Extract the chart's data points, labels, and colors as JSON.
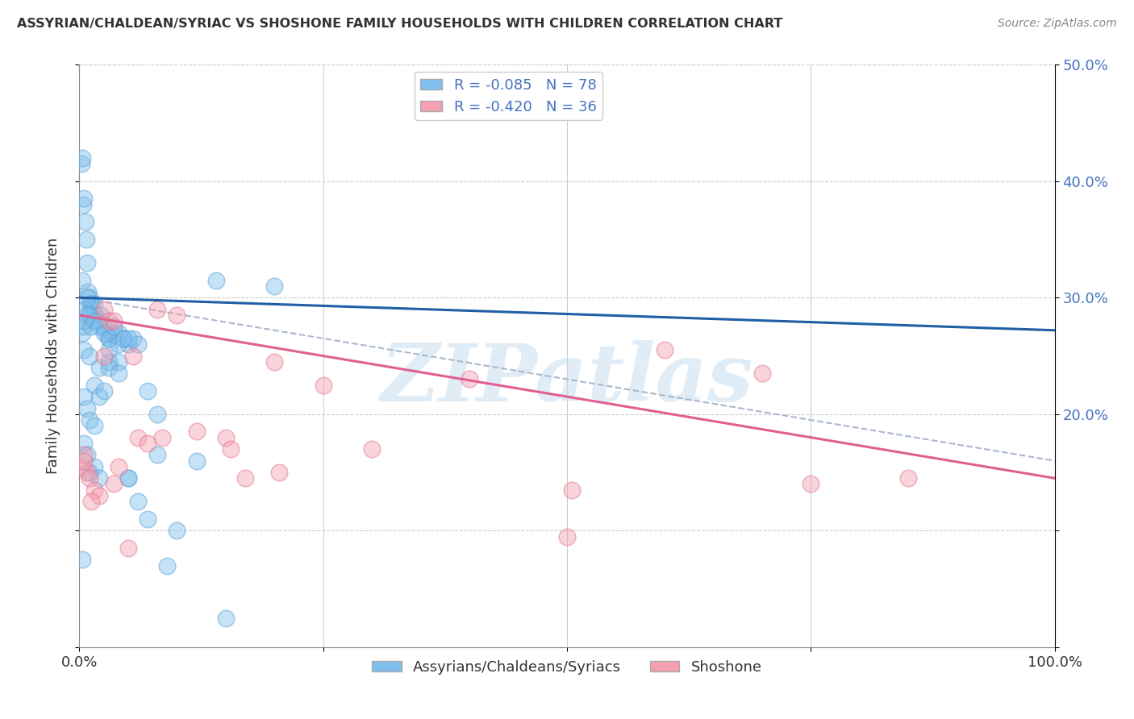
{
  "title": "ASSYRIAN/CHALDEAN/SYRIAC VS SHOSHONE FAMILY HOUSEHOLDS WITH CHILDREN CORRELATION CHART",
  "source": "Source: ZipAtlas.com",
  "ylabel": "Family Households with Children",
  "xlim": [
    0,
    100
  ],
  "ylim": [
    0,
    50
  ],
  "legend_label1": "R = -0.085   N = 78",
  "legend_label2": "R = -0.420   N = 36",
  "legend_label_bottom1": "Assyrians/Chaldeans/Syriacs",
  "legend_label_bottom2": "Shoshone",
  "color_blue": "#7fbfed",
  "color_blue_edge": "#5a9fd4",
  "color_pink": "#f5a0b0",
  "color_pink_edge": "#e07090",
  "color_blue_line": "#1f5fa6",
  "color_pink_line": "#e06090",
  "color_dashed": "#aab8cc",
  "watermark": "ZIPatlas",
  "background_color": "#ffffff",
  "blue_line_x0": 0,
  "blue_line_y0": 30.0,
  "blue_line_x1": 100,
  "blue_line_y1": 27.2,
  "pink_line_x0": 0,
  "pink_line_y0": 28.5,
  "pink_line_x1": 100,
  "pink_line_y1": 14.5,
  "dash_line_x0": 0,
  "dash_line_y0": 30.0,
  "dash_line_x1": 100,
  "dash_line_y1": 16.0,
  "blue_dots_x": [
    0.2,
    0.3,
    0.4,
    0.5,
    0.6,
    0.7,
    0.8,
    0.9,
    1.0,
    1.1,
    1.2,
    1.3,
    1.5,
    1.6,
    1.8,
    2.0,
    2.2,
    2.5,
    2.8,
    3.0,
    3.2,
    3.5,
    4.0,
    4.5,
    5.0,
    5.5,
    6.0,
    0.3,
    0.4,
    0.5,
    0.6,
    0.7,
    0.8,
    1.0,
    1.2,
    1.5,
    2.0,
    2.5,
    3.0,
    3.5,
    4.0,
    4.5,
    5.0,
    0.5,
    1.0,
    1.5,
    2.0,
    2.5,
    3.0,
    0.3,
    0.5,
    0.8,
    1.0,
    1.5,
    2.0,
    3.0,
    4.0,
    5.0,
    7.0,
    8.0,
    14.0,
    0.5,
    0.8,
    1.0,
    1.5,
    2.0,
    3.0,
    4.0,
    5.0,
    6.0,
    7.0,
    8.0,
    9.0,
    10.0,
    12.0,
    15.0,
    20.0,
    0.3
  ],
  "blue_dots_y": [
    41.5,
    42.0,
    38.0,
    38.5,
    36.5,
    35.0,
    33.0,
    30.5,
    30.0,
    29.5,
    29.5,
    29.0,
    29.5,
    28.5,
    28.0,
    28.0,
    28.5,
    27.5,
    27.0,
    26.5,
    27.0,
    27.0,
    27.0,
    26.5,
    26.0,
    26.5,
    26.0,
    27.0,
    27.5,
    28.0,
    29.0,
    28.5,
    30.0,
    28.5,
    27.5,
    28.0,
    27.5,
    27.0,
    26.5,
    27.5,
    26.0,
    26.5,
    26.5,
    25.5,
    25.0,
    22.5,
    21.5,
    22.0,
    25.5,
    31.5,
    21.5,
    20.5,
    19.5,
    19.0,
    24.0,
    24.5,
    24.5,
    14.5,
    22.0,
    20.0,
    31.5,
    17.5,
    16.5,
    15.0,
    15.5,
    14.5,
    24.0,
    23.5,
    14.5,
    12.5,
    11.0,
    16.5,
    7.0,
    10.0,
    16.0,
    2.5,
    31.0,
    7.5
  ],
  "pink_dots_x": [
    0.3,
    0.5,
    0.8,
    1.0,
    1.5,
    2.0,
    2.5,
    3.0,
    3.5,
    4.0,
    5.0,
    6.0,
    7.0,
    8.0,
    10.0,
    12.0,
    15.0,
    17.0,
    20.0,
    25.0,
    30.0,
    40.0,
    50.0,
    60.0,
    70.0,
    85.0,
    1.2,
    2.5,
    3.5,
    5.5,
    8.5,
    15.5,
    20.5,
    50.5,
    75.0,
    0.5
  ],
  "pink_dots_y": [
    15.5,
    16.5,
    15.0,
    14.5,
    13.5,
    13.0,
    29.0,
    28.0,
    28.0,
    15.5,
    8.5,
    18.0,
    17.5,
    29.0,
    28.5,
    18.5,
    18.0,
    14.5,
    24.5,
    22.5,
    17.0,
    23.0,
    9.5,
    25.5,
    23.5,
    14.5,
    12.5,
    25.0,
    14.0,
    25.0,
    18.0,
    17.0,
    15.0,
    13.5,
    14.0,
    16.0
  ]
}
